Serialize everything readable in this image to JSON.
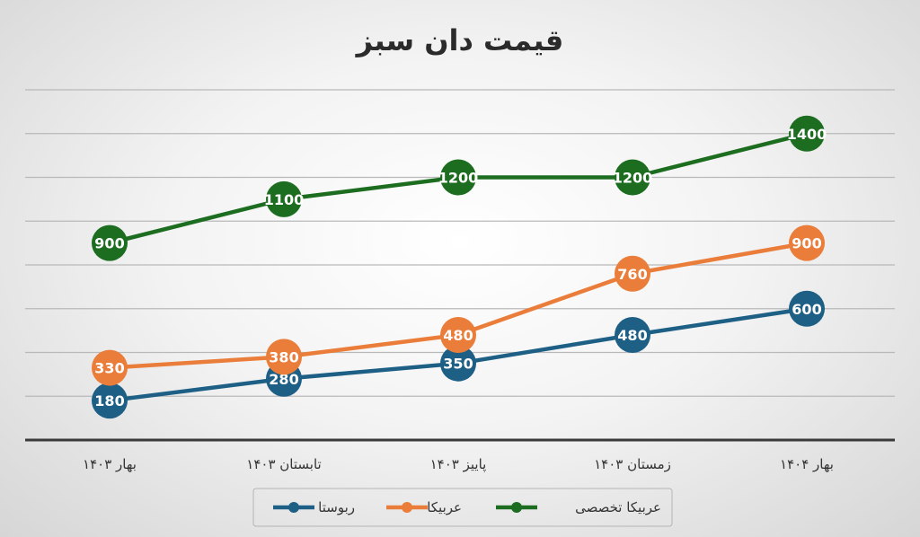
{
  "chart_data": {
    "type": "line",
    "title": "قیمت دان سبز",
    "categories": [
      "بهار ۱۴۰۳",
      "تابستان ۱۴۰۳",
      "پاییز ۱۴۰۳",
      "زمستان ۱۴۰۳",
      "بهار ۱۴۰۴"
    ],
    "series": [
      {
        "name": "ربوستا",
        "color": "#1d5f85",
        "values": [
          180,
          280,
          350,
          480,
          600
        ]
      },
      {
        "name": "عربیکا",
        "color": "#ea7d3a",
        "values": [
          330,
          380,
          480,
          760,
          900
        ]
      },
      {
        "name": "عربیکا تخصصی",
        "color": "#1d6d21",
        "values": [
          900,
          1100,
          1200,
          1200,
          1400
        ]
      }
    ],
    "ylim": [
      0,
      1600
    ],
    "grid": true,
    "xlabel": "",
    "ylabel": "",
    "legend": "bottom"
  }
}
